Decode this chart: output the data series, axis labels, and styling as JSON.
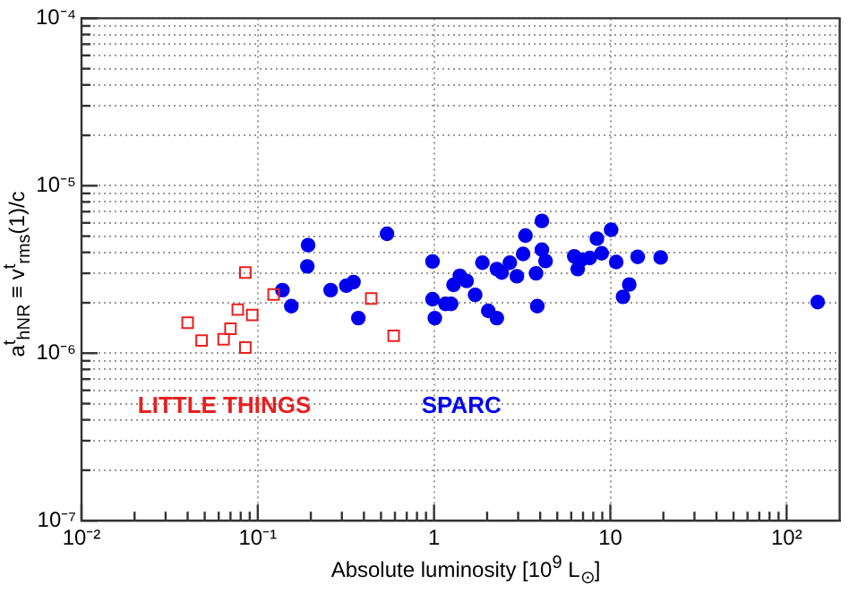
{
  "chart_data": {
    "type": "scatter",
    "xlabel": "Absolute luminosity [10$^{9}$ L$_{⊙}$]",
    "ylabel": "a$^{t}$$_{hNR}$ ≡ v$^{t}$$_{rms}$(1)/c",
    "log": "xy",
    "grid": true,
    "legend": false,
    "xlim": [
      0.01,
      200
    ],
    "ylim": [
      1e-07,
      0.0001
    ],
    "xticks": [
      {
        "value": 0.01,
        "label": "10⁻²"
      },
      {
        "value": 0.02,
        "label": null
      },
      {
        "value": 0.03,
        "label": null
      },
      {
        "value": 0.04,
        "label": null
      },
      {
        "value": 0.05,
        "label": null
      },
      {
        "value": 0.06,
        "label": null
      },
      {
        "value": 0.07,
        "label": null
      },
      {
        "value": 0.08,
        "label": null
      },
      {
        "value": 0.09,
        "label": null
      },
      {
        "value": 0.1,
        "label": "10⁻¹"
      },
      {
        "value": 0.2,
        "label": null
      },
      {
        "value": 0.3,
        "label": null
      },
      {
        "value": 0.4,
        "label": null
      },
      {
        "value": 0.5,
        "label": null
      },
      {
        "value": 0.6,
        "label": null
      },
      {
        "value": 0.7,
        "label": null
      },
      {
        "value": 0.8,
        "label": null
      },
      {
        "value": 0.9,
        "label": null
      },
      1,
      {
        "value": 2,
        "label": null
      },
      {
        "value": 3,
        "label": null
      },
      {
        "value": 4,
        "label": null
      },
      {
        "value": 5,
        "label": null
      },
      {
        "value": 6,
        "label": null
      },
      {
        "value": 7,
        "label": null
      },
      {
        "value": 8,
        "label": null
      },
      {
        "value": 9,
        "label": null
      },
      10,
      {
        "value": 20,
        "label": null
      },
      {
        "value": 30,
        "label": null
      },
      {
        "value": 40,
        "label": null
      },
      {
        "value": 50,
        "label": null
      },
      {
        "value": 60,
        "label": null
      },
      {
        "value": 70,
        "label": null
      },
      {
        "value": 80,
        "label": null
      },
      {
        "value": 90,
        "label": null
      },
      {
        "value": 100,
        "label": "10²"
      }
    ],
    "yticks": [
      {
        "value": 1e-07,
        "label": "10⁻⁷"
      },
      {
        "value": 2e-07,
        "label": null
      },
      {
        "value": 3e-07,
        "label": null
      },
      {
        "value": 4e-07,
        "label": null
      },
      {
        "value": 5e-07,
        "label": null
      },
      {
        "value": 6e-07,
        "label": null
      },
      {
        "value": 7e-07,
        "label": null
      },
      {
        "value": 8e-07,
        "label": null
      },
      {
        "value": 9e-07,
        "label": null
      },
      {
        "value": 1e-06,
        "label": "10⁻⁶"
      },
      {
        "value": 2e-06,
        "label": null
      },
      {
        "value": 3e-06,
        "label": null
      },
      {
        "value": 4e-06,
        "label": null
      },
      {
        "value": 5e-06,
        "label": null
      },
      {
        "value": 6e-06,
        "label": null
      },
      {
        "value": 7e-06,
        "label": null
      },
      {
        "value": 8e-06,
        "label": null
      },
      {
        "value": 9e-06,
        "label": null
      },
      {
        "value": 1e-05,
        "label": "10⁻⁵"
      },
      {
        "value": 2e-05,
        "label": null
      },
      {
        "value": 3e-05,
        "label": null
      },
      {
        "value": 4e-05,
        "label": null
      },
      {
        "value": 5e-05,
        "label": null
      },
      {
        "value": 6e-05,
        "label": null
      },
      {
        "value": 7e-05,
        "label": null
      },
      {
        "value": 8e-05,
        "label": null
      },
      {
        "value": 9e-05,
        "label": null
      },
      {
        "value": 0.0001,
        "label": "10⁻⁴"
      }
    ],
    "series": [
      {
        "name": "LITTLE THINGS",
        "color": "#e82020",
        "marker": "square",
        "x": [
          0.04,
          0.048,
          0.064,
          0.07,
          0.077,
          0.085,
          0.085,
          0.093,
          0.123,
          0.44,
          0.59
        ],
        "values": [
          1.52e-06,
          1.19e-06,
          1.21e-06,
          1.4e-06,
          1.82e-06,
          3.03e-06,
          1.08e-06,
          1.69e-06,
          2.24e-06,
          2.12e-06,
          1.27e-06
        ]
      },
      {
        "name": "SPARC",
        "color": "#0000ee",
        "marker": "circle",
        "x": [
          0.138,
          0.155,
          0.193,
          0.191,
          0.259,
          0.318,
          0.349,
          0.372,
          0.541,
          0.98,
          0.98,
          1.01,
          1.16,
          1.25,
          1.29,
          1.4,
          1.53,
          1.71,
          1.88,
          2.03,
          2.27,
          2.27,
          2.42,
          2.69,
          2.95,
          3.2,
          3.3,
          3.79,
          3.85,
          4.09,
          4.09,
          4.29,
          6.24,
          6.53,
          6.85,
          7.64,
          8.39,
          8.93,
          10.1,
          10.8,
          11.8,
          12.8,
          14.3,
          19.3,
          150
        ],
        "values": [
          2.38e-06,
          1.91e-06,
          4.42e-06,
          3.3e-06,
          2.38e-06,
          2.53e-06,
          2.66e-06,
          1.62e-06,
          5.16e-06,
          3.53e-06,
          2.1e-06,
          1.62e-06,
          1.97e-06,
          1.97e-06,
          2.56e-06,
          2.9e-06,
          2.7e-06,
          2.23e-06,
          3.47e-06,
          1.79e-06,
          1.62e-06,
          3.18e-06,
          3.03e-06,
          3.47e-06,
          2.88e-06,
          3.91e-06,
          5.04e-06,
          3e-06,
          1.91e-06,
          6.16e-06,
          4.15e-06,
          3.55e-06,
          3.79e-06,
          3.18e-06,
          3.61e-06,
          3.7e-06,
          4.83e-06,
          3.95e-06,
          5.46e-06,
          3.5e-06,
          2.17e-06,
          2.57e-06,
          3.76e-06,
          3.73e-06,
          2.02e-06
        ]
      }
    ]
  }
}
